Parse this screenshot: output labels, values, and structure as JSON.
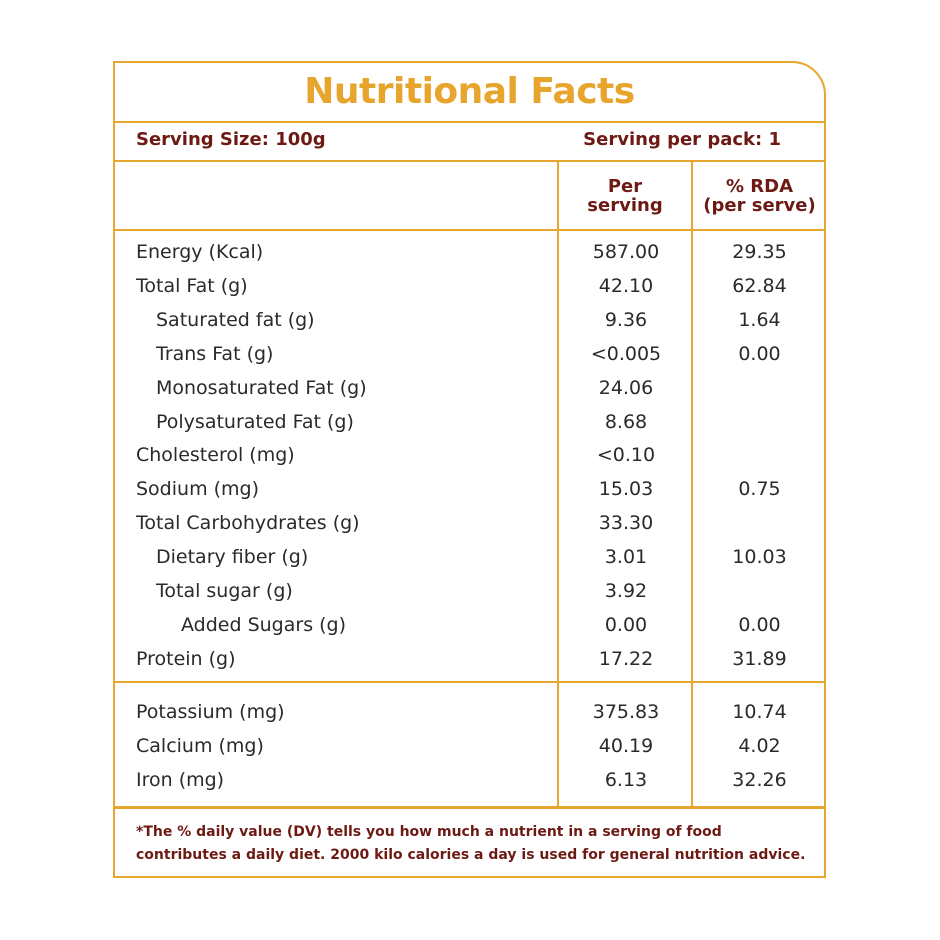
{
  "title": "Nutritional Facts",
  "serving_size": "Serving Size: 100g",
  "serving_per_pack": "Serving per pack: 1",
  "col_per_line1": "Per",
  "col_per_line2": "serving",
  "col_rda_line1": "% RDA",
  "col_rda_line2": "(per serve)",
  "rows": [
    {
      "name": "Energy (Kcal)",
      "per": "587.00",
      "rda": "29.35",
      "indent": 0
    },
    {
      "name": "Total Fat (g)",
      "per": "42.10",
      "rda": "62.84",
      "indent": 0
    },
    {
      "name": "Saturated fat (g)",
      "per": "9.36",
      "rda": "1.64",
      "indent": 1
    },
    {
      "name": "Trans Fat (g)",
      "per": "<0.005",
      "rda": "0.00",
      "indent": 1
    },
    {
      "name": "Monosaturated Fat (g)",
      "per": "24.06",
      "rda": "",
      "indent": 1
    },
    {
      "name": "Polysaturated Fat (g)",
      "per": "8.68",
      "rda": "",
      "indent": 1
    },
    {
      "name": "Cholesterol (mg)",
      "per": "<0.10",
      "rda": "",
      "indent": 0
    },
    {
      "name": "Sodium (mg)",
      "per": "15.03",
      "rda": "0.75",
      "indent": 0
    },
    {
      "name": "Total Carbohydrates  (g)",
      "per": "33.30",
      "rda": "",
      "indent": 0
    },
    {
      "name": "Dietary fiber (g)",
      "per": "3.01",
      "rda": "10.03",
      "indent": 1
    },
    {
      "name": "Total sugar (g)",
      "per": "3.92",
      "rda": "",
      "indent": 1
    },
    {
      "name": "Added Sugars (g)",
      "per": "0.00",
      "rda": "0.00",
      "indent": 2
    },
    {
      "name": "Protein (g)",
      "per": "17.22",
      "rda": "31.89",
      "indent": 0
    }
  ],
  "minerals": [
    {
      "name": "Potassium (mg)",
      "per": "375.83",
      "rda": "10.74",
      "indent": 0
    },
    {
      "name": "Calcium (mg)",
      "per": "40.19",
      "rda": "4.02",
      "indent": 0
    },
    {
      "name": "Iron (mg)",
      "per": "6.13",
      "rda": "32.26",
      "indent": 0
    }
  ],
  "footnote": "*The % daily value (DV) tells you how much a nutrient in a serving of food contributes a daily diet. 2000 kilo calories a day is used for general nutrition advice.",
  "colors": {
    "accent": "#e8a52d",
    "header_text": "#6e1a14",
    "body_text": "#2a2a2a"
  }
}
